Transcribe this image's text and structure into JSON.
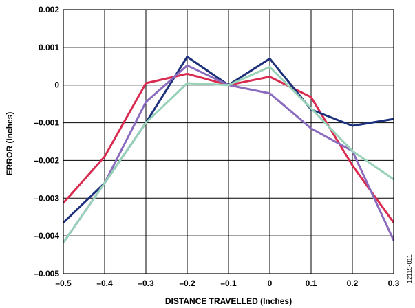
{
  "chart_data": {
    "type": "line",
    "xlabel": "DISTANCE TRAVELLED (Inches)",
    "ylabel": "ERROR (Inches)",
    "xlim": [
      -0.5,
      0.3
    ],
    "ylim": [
      -0.005,
      0.002
    ],
    "x_ticks": [
      -0.5,
      -0.4,
      -0.3,
      -0.2,
      -0.1,
      0,
      0.1,
      0.2,
      0.3
    ],
    "x_tick_labels": [
      "–0.5",
      "–0.4",
      "–0.3",
      "–0.2",
      "–0.1",
      "0",
      "0.1",
      "0.2",
      "0.3"
    ],
    "y_ticks": [
      0.002,
      0.001,
      0,
      -0.001,
      -0.002,
      -0.003,
      -0.004,
      -0.005
    ],
    "y_tick_labels": [
      "0.002",
      "0.001",
      "0",
      "–0.001",
      "–0.002",
      "–0.003",
      "–0.004",
      "–0.005"
    ],
    "grid": true,
    "x": [
      -0.5,
      -0.4,
      -0.3,
      -0.2,
      -0.1,
      0,
      0.1,
      0.2,
      0.3
    ],
    "series": [
      {
        "color": "#d92b4f",
        "values": [
          -0.00313,
          -0.0019,
          5e-05,
          0.0003,
          0.0,
          0.00022,
          -0.00032,
          -0.00213,
          -0.00365
        ]
      },
      {
        "color": "#1c2f7a",
        "values": [
          -0.00365,
          -0.0026,
          -0.001,
          0.00075,
          0.0,
          0.0007,
          -0.00065,
          -0.00108,
          -0.0009
        ]
      },
      {
        "color": "#8a6bbd",
        "values": [
          -0.00418,
          -0.0026,
          -0.00045,
          0.00052,
          0.0,
          -0.00022,
          -0.00115,
          -0.00175,
          -0.00412
        ]
      },
      {
        "color": "#97d1b8",
        "values": [
          -0.00418,
          -0.0026,
          -0.001,
          5e-05,
          0.0,
          0.00048,
          -0.00062,
          -0.00175,
          -0.0025
        ]
      }
    ]
  },
  "figure_id": "12115-011"
}
